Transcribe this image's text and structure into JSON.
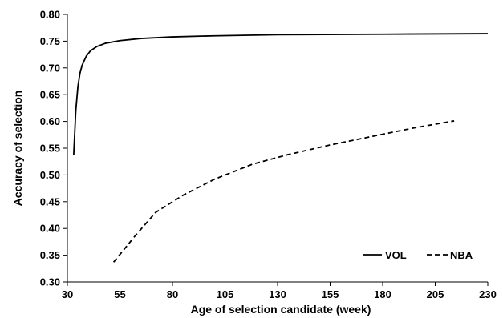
{
  "chart_data": {
    "type": "line",
    "title": "",
    "xlabel": "Age of selection candidate (week)",
    "ylabel": "Accuracy of selection",
    "xlim": [
      30,
      230
    ],
    "ylim": [
      0.3,
      0.8
    ],
    "x_ticks": [
      30,
      55,
      80,
      105,
      130,
      155,
      180,
      205,
      230
    ],
    "x_tick_labels": [
      "30",
      "55",
      "80",
      "105",
      "130",
      "155",
      "180",
      "205",
      "230"
    ],
    "y_ticks": [
      0.3,
      0.35,
      0.4,
      0.45,
      0.5,
      0.55,
      0.6,
      0.65,
      0.7,
      0.75,
      0.8
    ],
    "y_tick_labels": [
      "0.30",
      "0.35",
      "0.40",
      "0.45",
      "0.50",
      "0.55",
      "0.60",
      "0.65",
      "0.70",
      "0.75",
      "0.80"
    ],
    "grid": false,
    "legend_position": "bottom-right",
    "series": [
      {
        "name": "VOL",
        "style": "solid",
        "color": "#000000",
        "x": [
          33,
          34,
          35,
          36,
          37,
          39,
          41,
          44,
          48,
          55,
          65,
          80,
          100,
          130,
          180,
          230
        ],
        "y": [
          0.537,
          0.62,
          0.665,
          0.69,
          0.705,
          0.722,
          0.732,
          0.74,
          0.746,
          0.751,
          0.755,
          0.758,
          0.76,
          0.762,
          0.763,
          0.764
        ]
      },
      {
        "name": "NBA",
        "style": "dashed",
        "color": "#000000",
        "x": [
          52,
          62,
          72,
          85,
          100,
          118,
          135,
          155,
          175,
          195,
          214
        ],
        "y": [
          0.337,
          0.385,
          0.43,
          0.462,
          0.492,
          0.52,
          0.538,
          0.556,
          0.572,
          0.588,
          0.601
        ]
      }
    ]
  }
}
